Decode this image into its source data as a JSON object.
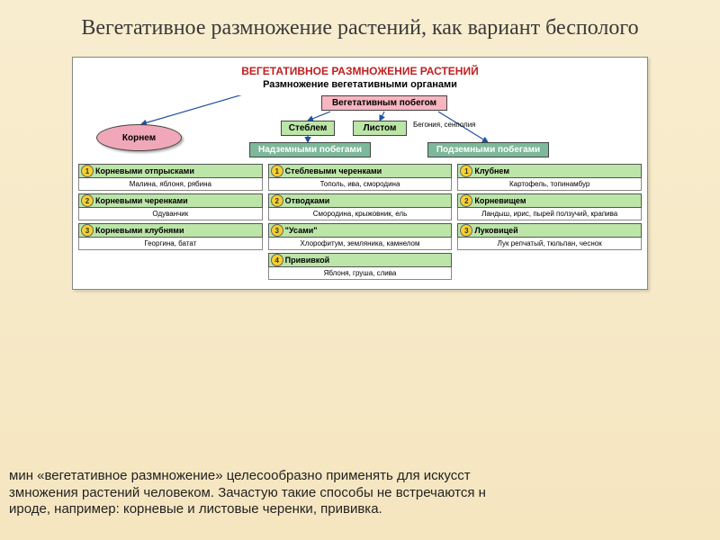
{
  "colors": {
    "slide_bg_top": "#f8edcf",
    "slide_bg_bottom": "#f5e6c0",
    "diagram_bg": "#ffffff",
    "title_color": "#3a3a3a",
    "diagram_title_color": "#c02020",
    "diagram_sub_color": "#000000",
    "pink_node": "#f7b5c0",
    "green_node": "#bce5a8",
    "teal_node": "#7db89a",
    "root_ellipse": "#f0a8b8",
    "bullet": "#f5d030",
    "arrow": "#2050a0"
  },
  "fonts": {
    "title_size_pt": 24,
    "diag_title_pt": 12,
    "diag_sub_pt": 11,
    "node_pt": 10,
    "method_pt": 9,
    "example_pt": 8,
    "footer_pt": 15
  },
  "title": "Вегетативное размножение растений, как вариант бесполого",
  "diagram": {
    "heading": "ВЕГЕТАТИВНОЕ РАЗМНОЖЕНИЕ РАСТЕНИЙ",
    "subtitle": "Размножение вегетативными органами",
    "top_node": "Вегетативным побегом",
    "stem": "Стеблем",
    "leaf": "Листом",
    "leaf_note": "Бегония, сенполия",
    "root": "Корнем",
    "above": "Надземными побегами",
    "below": "Подземными побегами",
    "columns": [
      {
        "items": [
          {
            "num": "1",
            "method": "Корневыми отпрысками",
            "example": "Малина, яблоня, рябина"
          },
          {
            "num": "2",
            "method": "Корневыми черенками",
            "example": "Одуванчик"
          },
          {
            "num": "3",
            "method": "Корневыми клубнями",
            "example": "Георгина, батат"
          }
        ]
      },
      {
        "items": [
          {
            "num": "1",
            "method": "Стеблевыми черенками",
            "example": "Тополь, ива, смородина"
          },
          {
            "num": "2",
            "method": "Отводками",
            "example": "Смородина, крыжовник, ель"
          },
          {
            "num": "3",
            "method": "\"Усами\"",
            "example": "Хлорофитум, земляника, камнелом"
          },
          {
            "num": "4",
            "method": "Прививкой",
            "example": "Яблоня, груша, слива"
          }
        ]
      },
      {
        "items": [
          {
            "num": "1",
            "method": "Клубнем",
            "example": "Картофель, топинамбур"
          },
          {
            "num": "2",
            "method": "Корневищем",
            "example": "Ландыш, ирис, пырей ползучий, крапива"
          },
          {
            "num": "3",
            "method": "Луковицей",
            "example": "Лук репчатый, тюльпан, чеснок"
          }
        ]
      }
    ]
  },
  "footer_lines": [
    "мин «вегетативное размножение» целесообразно применять для искусст",
    "змножения растений человеком. Зачастую такие способы не встречаются н",
    "ироде, например: корневые и листовые черенки, прививка."
  ]
}
